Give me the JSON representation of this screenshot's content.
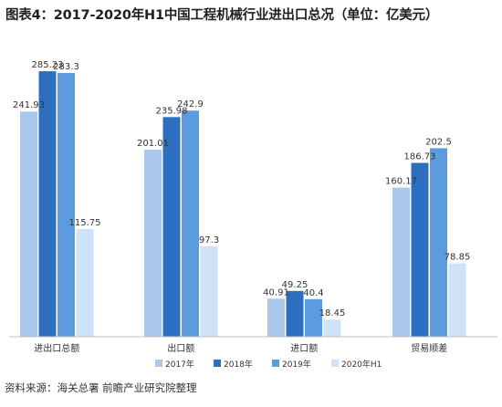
{
  "title": "图表4：2017-2020年H1中国工程机械行业进出口总况（单位：亿美元）",
  "source": "资料来源：海关总署 前瞻产业研究院整理",
  "colors": {
    "series": [
      "#a9c8ec",
      "#2c6fbf",
      "#5b9bde",
      "#cfe2f7"
    ],
    "axis": "#bfbfbf"
  },
  "chart_data": {
    "type": "bar",
    "title": "图表4：2017-2020年H1中国工程机械行业进出口总况（单位：亿美元）",
    "categories": [
      "进出口总额",
      "出口额",
      "进口额",
      "贸易顺差"
    ],
    "series": [
      {
        "name": "2017年",
        "values": [
          241.93,
          201.01,
          40.91,
          160.17
        ]
      },
      {
        "name": "2018年",
        "values": [
          285.23,
          235.98,
          49.25,
          186.73
        ]
      },
      {
        "name": "2019年",
        "values": [
          283.3,
          242.9,
          40.4,
          202.5
        ]
      },
      {
        "name": "2020年H1",
        "values": [
          115.75,
          97.3,
          18.45,
          78.85
        ]
      }
    ],
    "value_labels": [
      [
        "241.93",
        "201.01",
        "40.91",
        "160.17"
      ],
      [
        "285.23",
        "235.98",
        "49.25",
        "186.73"
      ],
      [
        "283.3",
        "242.9",
        "40.4",
        "202.5"
      ],
      [
        "115.75",
        "97.3",
        "18.45",
        "78.85"
      ]
    ],
    "ylim": [
      0,
      300
    ],
    "grid": false,
    "legend_position": "bottom-center"
  }
}
